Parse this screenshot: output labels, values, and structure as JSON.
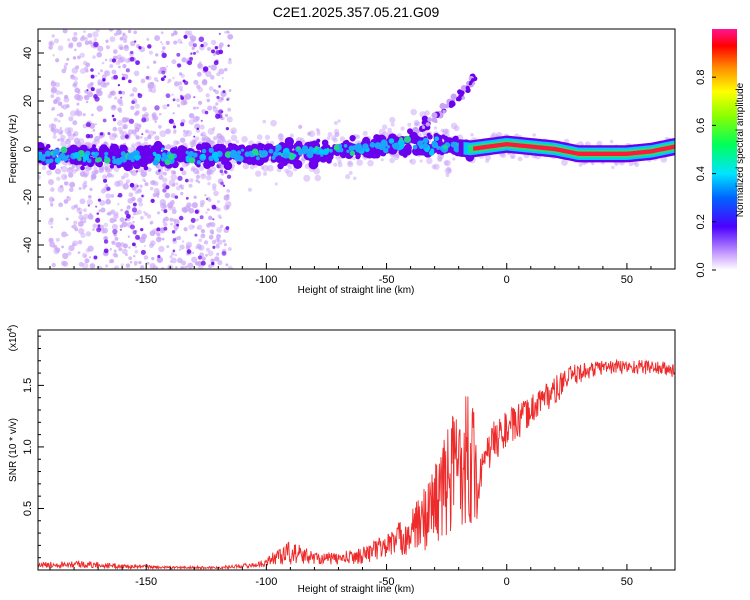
{
  "title": "C2E1.2025.357.05.21.G09",
  "colors": {
    "snr_line": "#ee2a2a",
    "band_core": "#ff1a3a",
    "band_mid": "#22e07a",
    "band_outer": "#00c8ff",
    "scatter_strong": "#6a00ee",
    "scatter_weak": "#c9a3f7"
  },
  "chart_data": [
    {
      "type": "heatmap",
      "xlabel": "Height of straight line (km)",
      "ylabel": "Frequency (Hz)",
      "xlim": [
        -195,
        70
      ],
      "ylim": [
        -50,
        50
      ],
      "x_ticks": [
        -150,
        -100,
        -50,
        0,
        50
      ],
      "x_tick_labels": [
        "-150",
        "-100",
        "-50",
        "0",
        "50"
      ],
      "y_ticks": [
        -40,
        -20,
        0,
        20,
        40
      ],
      "y_tick_labels": [
        "-40",
        "-20",
        "0",
        "20",
        "40"
      ],
      "grid": false,
      "band_centerline": {
        "x": [
          -195,
          -150,
          -100,
          -60,
          -40,
          -25,
          -15,
          0,
          10,
          20,
          30,
          40,
          50,
          60,
          70
        ],
        "y": [
          -3,
          -3,
          -2,
          0,
          2,
          1,
          0,
          2,
          1,
          0,
          -2,
          -2,
          -2,
          -1,
          1
        ]
      },
      "branch_feature": {
        "x": [
          -40,
          -30,
          -20,
          -13
        ],
        "y": [
          5,
          13,
          22,
          30
        ]
      },
      "colorbar": {
        "label": "Normalized spectral amplitude",
        "range": [
          0,
          1
        ],
        "ticks": [
          0.0,
          0.2,
          0.4,
          0.6,
          0.8
        ],
        "tick_labels": [
          "0.0",
          "0.2",
          "0.4",
          "0.6",
          "0.8"
        ]
      }
    },
    {
      "type": "line",
      "xlabel": "Height of straight line (km)",
      "ylabel": "SNR (10 * v/v)",
      "y_multiplier_label": "(x10",
      "y_multiplier_exp": "4",
      "xlim": [
        -195,
        70
      ],
      "ylim": [
        0,
        1.95
      ],
      "x_ticks": [
        -150,
        -100,
        -50,
        0,
        50
      ],
      "x_tick_labels": [
        "-150",
        "-100",
        "-50",
        "0",
        "50"
      ],
      "y_ticks": [
        0.5,
        1.0,
        1.5
      ],
      "y_tick_labels": [
        "0.5",
        "1.0",
        "1.5"
      ],
      "grid": false,
      "series": [
        {
          "name": "SNR",
          "x": [
            -195,
            -180,
            -160,
            -140,
            -120,
            -105,
            -100,
            -95,
            -90,
            -80,
            -70,
            -60,
            -50,
            -40,
            -35,
            -30,
            -25,
            -20,
            -15,
            -12,
            -10,
            -8,
            -5,
            0,
            5,
            10,
            15,
            20,
            25,
            30,
            40,
            50,
            60,
            70
          ],
          "y": [
            0.04,
            0.05,
            0.03,
            0.02,
            0.02,
            0.04,
            0.06,
            0.12,
            0.14,
            0.1,
            0.09,
            0.12,
            0.2,
            0.3,
            0.4,
            0.55,
            0.7,
            0.9,
            0.95,
            0.7,
            0.8,
            0.95,
            1.05,
            1.15,
            1.2,
            1.3,
            1.4,
            1.45,
            1.55,
            1.6,
            1.65,
            1.65,
            1.65,
            1.62
          ],
          "noise": [
            0.02,
            0.03,
            0.02,
            0.01,
            0.01,
            0.02,
            0.03,
            0.08,
            0.1,
            0.05,
            0.05,
            0.07,
            0.1,
            0.18,
            0.25,
            0.35,
            0.45,
            0.55,
            0.6,
            0.3,
            0.15,
            0.15,
            0.18,
            0.15,
            0.15,
            0.12,
            0.12,
            0.12,
            0.1,
            0.08,
            0.06,
            0.06,
            0.06,
            0.06
          ]
        }
      ]
    }
  ]
}
